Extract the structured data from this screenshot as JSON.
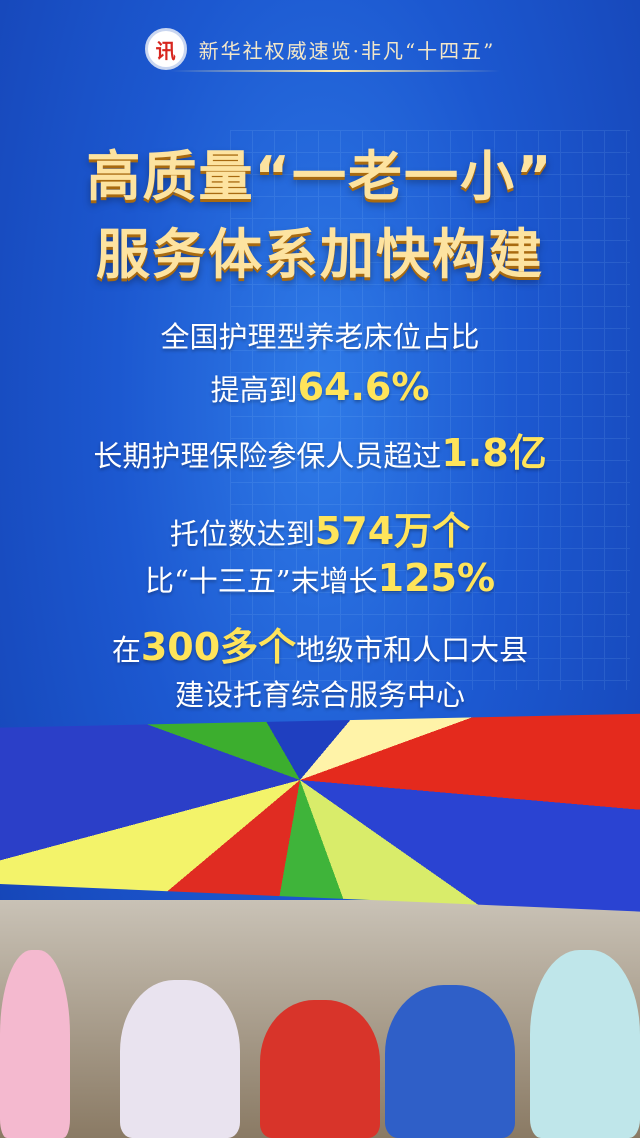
{
  "header": {
    "logo": "新华社",
    "title": "新华社权威速览·非凡“十四五”"
  },
  "title": {
    "line1": "高质量“一老一小”",
    "line2": "服务体系加快构建"
  },
  "stats": [
    {
      "pre": "全国护理型养老床位占比",
      "num": "",
      "post": ""
    },
    {
      "pre": "提高到",
      "num": "64.6%",
      "post": ""
    },
    {
      "pre": "长期护理保险参保人员超过",
      "num": "1.8亿",
      "post": ""
    },
    {
      "pre": "托位数达到",
      "num": "574万个",
      "post": ""
    },
    {
      "pre": "比“十三五”末增长",
      "num": "125%",
      "post": ""
    },
    {
      "pre": "在",
      "num": "300多个",
      "post": "地级市和人口大县"
    },
    {
      "pre": "建设托育综合服务中心",
      "num": "",
      "post": ""
    }
  ],
  "colors": {
    "background": "#1c58d0",
    "title": "#fde3a0",
    "highlight": "#ffe45a"
  }
}
